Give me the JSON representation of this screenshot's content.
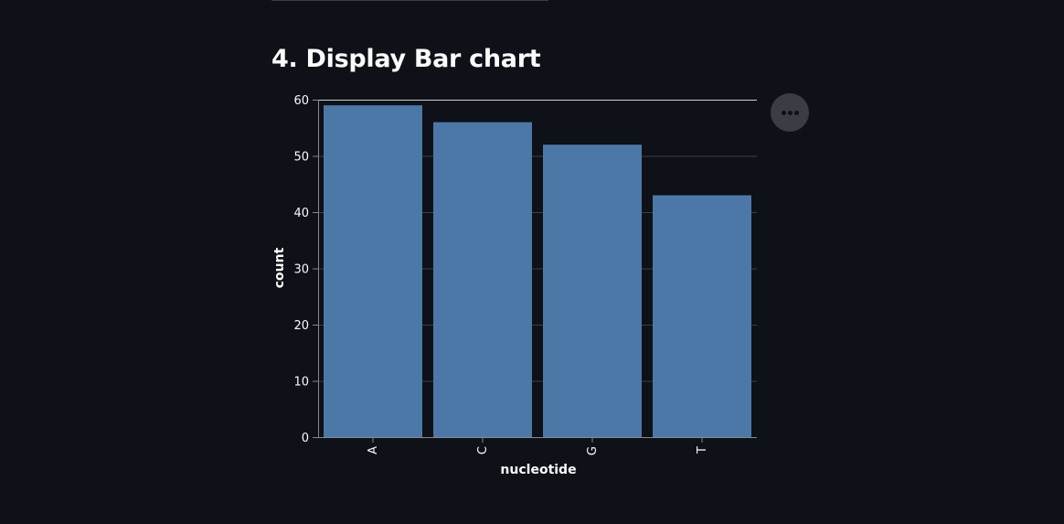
{
  "header": {
    "title": "4. Display Bar chart"
  },
  "menu": {
    "icon": "more-horizontal-icon"
  },
  "colors": {
    "bar": "#4c78a8",
    "background": "#0e1117",
    "grid": "#3b3e46",
    "axis": "#888888",
    "text": "#fafafa"
  },
  "chart_data": {
    "type": "bar",
    "categories": [
      "A",
      "C",
      "G",
      "T"
    ],
    "values": [
      59,
      56,
      52,
      43
    ],
    "xlabel": "nucleotide",
    "ylabel": "count",
    "ylim": [
      0,
      60
    ],
    "yticks": [
      0,
      10,
      20,
      30,
      40,
      50,
      60
    ],
    "grid": true,
    "legend": "none"
  }
}
